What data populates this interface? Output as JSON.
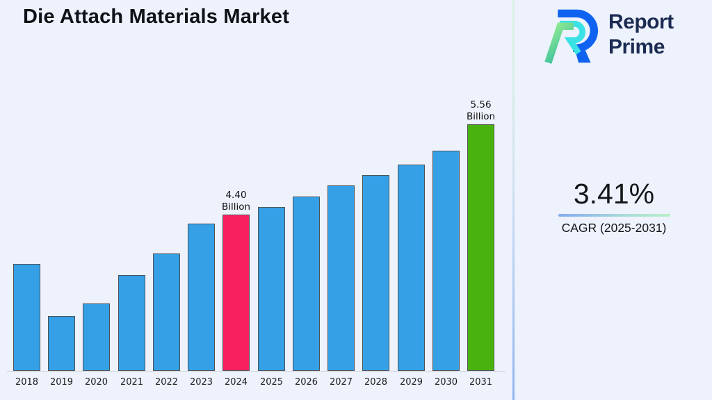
{
  "page": {
    "background": "#edf2fc"
  },
  "header": {
    "title": "Die Attach Materials Market"
  },
  "logo": {
    "line1": "Report",
    "line2": "Prime",
    "text_color": "#1c2b52",
    "mark_colors": {
      "blue": "#0f63f0",
      "cyan": "#3ae2e6",
      "green_light": "#9aef90",
      "green_teal": "#2eb9a0"
    }
  },
  "cagr": {
    "value": "3.41%",
    "label": "CAGR (2025-2031)",
    "underline_gradient": [
      "#86aaf1",
      "#b9efc6"
    ]
  },
  "chart_data": {
    "type": "bar",
    "title": "Die Attach Materials Market",
    "categories": [
      "2018",
      "2019",
      "2020",
      "2021",
      "2022",
      "2023",
      "2024",
      "2025",
      "2026",
      "2027",
      "2028",
      "2029",
      "2030",
      "2031"
    ],
    "values": [
      3.77,
      3.1,
      3.26,
      3.63,
      3.9,
      4.28,
      4.4,
      4.5,
      4.63,
      4.77,
      4.91,
      5.04,
      5.22,
      5.56
    ],
    "values_unit": "Billion",
    "axis_baseline_value": 2.4,
    "ylim": [
      2.4,
      5.75
    ],
    "grid": false,
    "legend": false,
    "bar_color_default": "#35a0e6",
    "bar_border_color": "#4d5156",
    "highlight_colors": {
      "2024": "#f9205f",
      "2031": "#49b20e"
    },
    "annotations": [
      {
        "year": "2024",
        "lines": [
          "4.40",
          "Billion"
        ]
      },
      {
        "year": "2031",
        "lines": [
          "5.56",
          "Billion"
        ]
      }
    ]
  }
}
